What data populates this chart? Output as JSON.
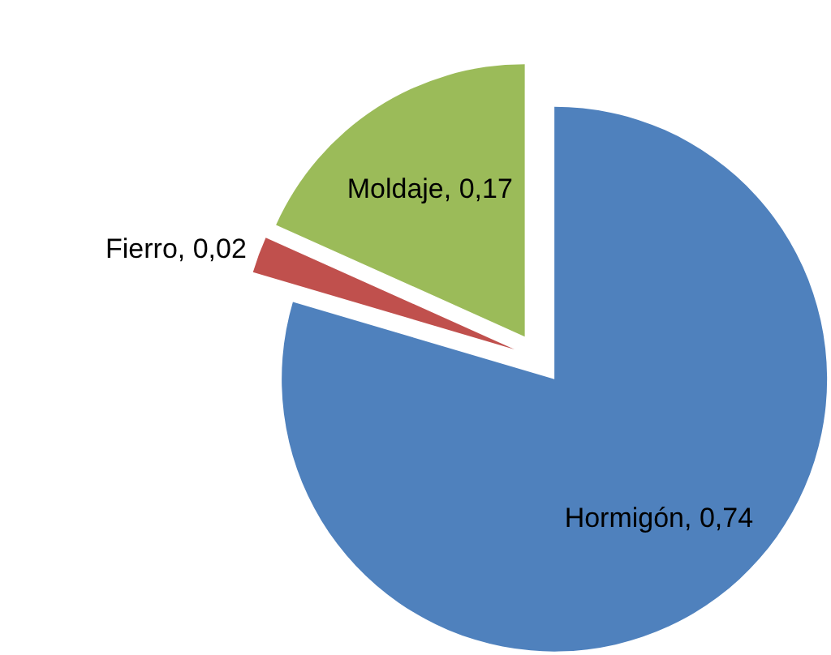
{
  "chart_data": {
    "type": "pie",
    "categories": [
      "Hormigón",
      "Fierro",
      "Moldaje"
    ],
    "values": [
      0.74,
      0.02,
      0.17
    ],
    "colors": [
      "#4f81bd",
      "#c0504d",
      "#9bbb59"
    ],
    "value_labels": [
      "0,74",
      "0,02",
      "0,17"
    ]
  }
}
